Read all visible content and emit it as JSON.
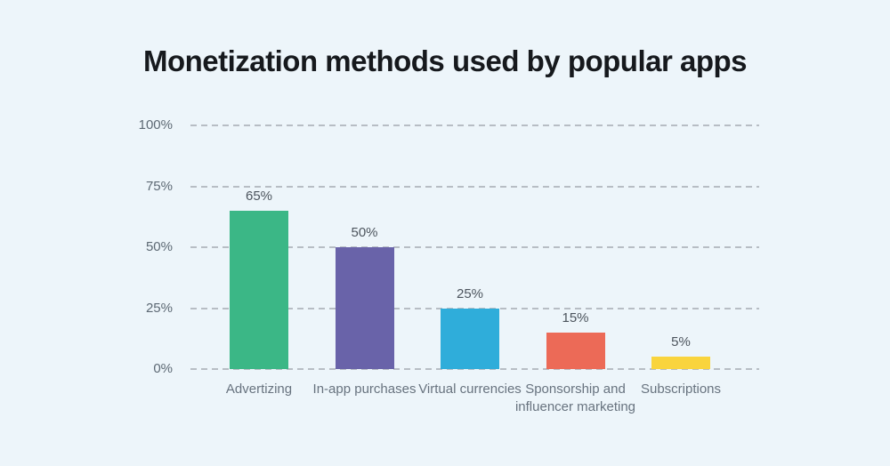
{
  "title": "Monetization methods used by popular apps",
  "chart_data": {
    "type": "bar",
    "title": "Monetization methods used by popular apps",
    "categories": [
      "Advertizing",
      "In-app purchases",
      "Virtual currencies",
      "Sponsorship and influencer marketing",
      "Subscriptions"
    ],
    "values": [
      65,
      50,
      25,
      15,
      5
    ],
    "value_labels": [
      "65%",
      "50%",
      "25%",
      "15%",
      "5%"
    ],
    "bar_colors": [
      "#3bb786",
      "#6963a9",
      "#2fadda",
      "#ec6a57",
      "#f9d43d"
    ],
    "y_ticks": [
      "100%",
      "75%",
      "50%",
      "25%",
      "0%"
    ],
    "ylim": [
      0,
      100
    ],
    "xlabel": "",
    "ylabel": "",
    "grid": "horizontal-dashed",
    "legend": "none",
    "background_color": "#edf5fa",
    "gridline_color": "#b7bdc4"
  }
}
